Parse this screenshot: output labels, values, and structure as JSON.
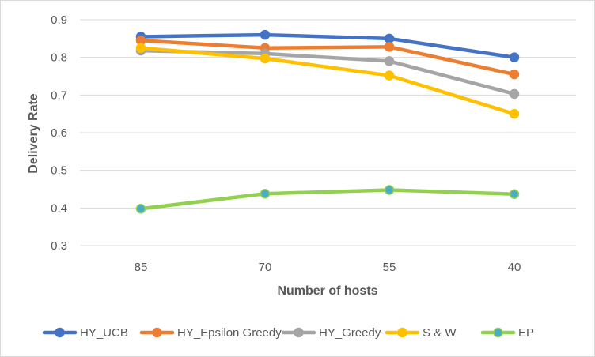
{
  "chart_data": {
    "type": "line",
    "title": "",
    "xlabel": "Number of hosts",
    "ylabel": "Delivery Rate",
    "categories": [
      "85",
      "70",
      "55",
      "40"
    ],
    "ylim": [
      0.3,
      0.9
    ],
    "yticks": [
      "0.3",
      "0.4",
      "0.5",
      "0.6",
      "0.7",
      "0.8",
      "0.9"
    ],
    "grid": "horizontal",
    "legend": "bottom",
    "series": [
      {
        "name": "HY_UCB",
        "color": "#4472C4",
        "values": [
          0.855,
          0.86,
          0.85,
          0.8
        ]
      },
      {
        "name": "HY_Epsilon Greedy",
        "color": "#ED7D31",
        "values": [
          0.845,
          0.825,
          0.828,
          0.755
        ]
      },
      {
        "name": "HY_Greedy",
        "color": "#A5A5A5",
        "values": [
          0.818,
          0.81,
          0.79,
          0.703
        ]
      },
      {
        "name": "S & W",
        "color": "#FFC000",
        "values": [
          0.825,
          0.797,
          0.752,
          0.65
        ]
      },
      {
        "name": "EP",
        "color": "#92D050",
        "marker_color": "#4BACC6",
        "values": [
          0.398,
          0.438,
          0.448,
          0.437
        ]
      }
    ]
  }
}
